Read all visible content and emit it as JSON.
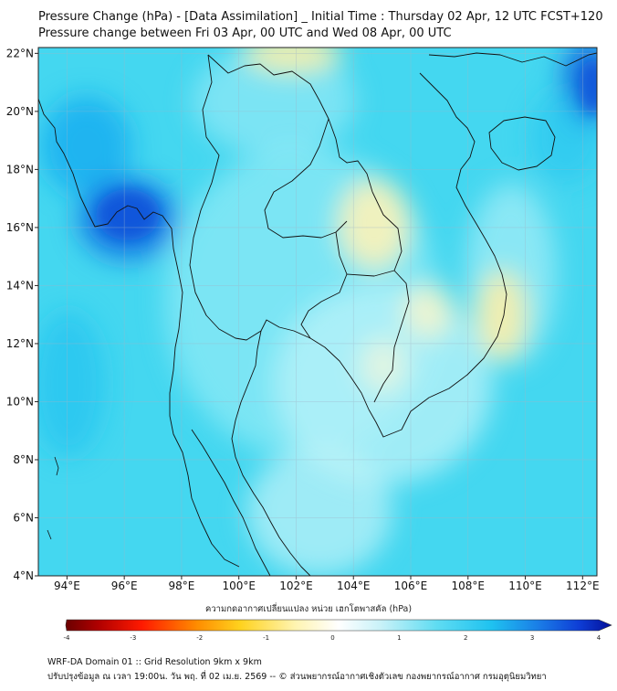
{
  "title": "Pressure Change (hPa) - [Data Assimilation] _ Initial Time : Thursday 02 Apr, 12 UTC FCST+120",
  "subtitle": "Pressure change between Fri 03 Apr, 00 UTC and Wed 08 Apr, 00 UTC",
  "map": {
    "lon_range": [
      93,
      112.5
    ],
    "lat_range": [
      4,
      22.2
    ],
    "lon_ticks": [
      "94°E",
      "96°E",
      "98°E",
      "100°E",
      "102°E",
      "104°E",
      "106°E",
      "108°E",
      "110°E",
      "112°E"
    ],
    "lat_ticks": [
      "22°N",
      "20°N",
      "18°N",
      "16°N",
      "14°N",
      "12°N",
      "10°N",
      "8°N",
      "6°N",
      "4°N"
    ],
    "background_color": "#44d7f0"
  },
  "colorbar": {
    "label": "ความกดอากาศเปลี่ยนแปลง หน่วย เฮกโตพาสคัล (hPa)",
    "ticks": [
      "-4",
      "-3",
      "-2",
      "-1",
      "0",
      "1",
      "2",
      "3",
      "4"
    ],
    "range": [
      -4,
      4
    ]
  },
  "footer": {
    "line1": "WRF-DA Domain 01 :: Grid Resolution 9km x 9km",
    "line2": "ปรับปรุงข้อมูล ณ เวลา 19:00น. วัน พฤ. ที่ 02 เม.ย. 2569 -- © ส่วนพยากรณ์อากาศเชิงตัวเลข กองพยากรณ์อากาศ กรมอุตุนิยมวิทยา"
  }
}
